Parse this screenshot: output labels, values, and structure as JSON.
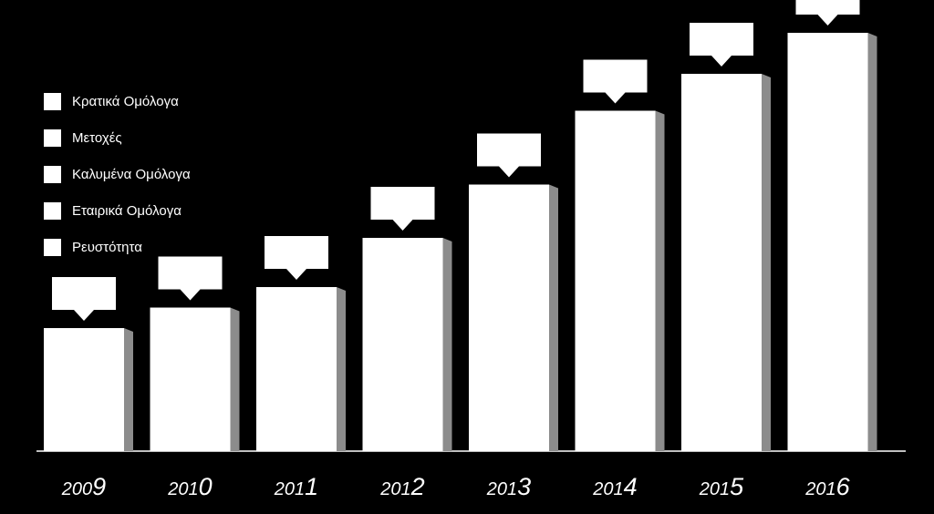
{
  "colors": {
    "background": "#000000",
    "bar_face": "#ffffff",
    "bar_side": "#8c8c8c",
    "axis": "#ffffff",
    "label": "#ffffff"
  },
  "legend": [
    "Κρατικά Ομόλογα",
    "Μετοχές",
    "Καλυμένα Ομόλογα",
    "Εταιρικά Ομόλογα",
    "Ρευστότητα"
  ],
  "chart_data": {
    "type": "bar",
    "title": "",
    "xlabel": "",
    "ylabel": "",
    "categories": [
      "2009",
      "2010",
      "2011",
      "2012",
      "2013",
      "2014",
      "2015",
      "2016"
    ],
    "values": [
      30,
      35,
      40,
      52,
      65,
      83,
      92,
      102
    ],
    "ylim": [
      0,
      110
    ],
    "grid": false,
    "legend_position": "top-left",
    "data_labels": [
      "",
      "",
      "",
      "",
      "",
      "",
      "",
      ""
    ]
  }
}
